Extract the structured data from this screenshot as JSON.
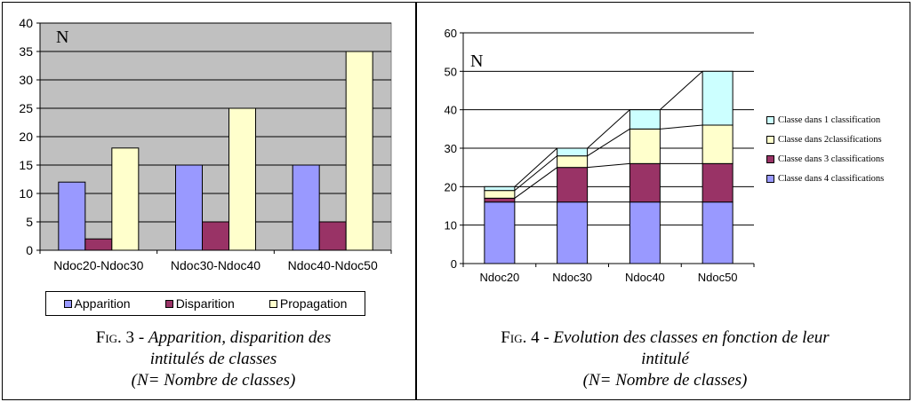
{
  "chart_data": [
    {
      "type": "bar",
      "y_axis_letter": "N",
      "categories": [
        "Ndoc20-Ndoc30",
        "Ndoc30-Ndoc40",
        "Ndoc40-Ndoc50"
      ],
      "series": [
        {
          "name": "Apparition",
          "values": [
            12,
            15,
            15
          ],
          "color": "#9999ff"
        },
        {
          "name": "Disparition",
          "values": [
            2,
            5,
            5
          ],
          "color": "#993366"
        },
        {
          "name": "Propagation",
          "values": [
            18,
            25,
            35
          ],
          "color": "#ffffcc"
        }
      ],
      "ylim": [
        0,
        40
      ],
      "yticks": [
        0,
        5,
        10,
        15,
        20,
        25,
        30,
        35,
        40
      ],
      "grid": true,
      "legend_placement": "bottom",
      "plot_background": "#c0c0c0",
      "caption": {
        "fig_label": "Fig. 3",
        "title_line1": "Apparition, disparition des",
        "title_line2": "intitulés de classes",
        "note": "(N= Nombre de classes)"
      }
    },
    {
      "type": "stacked-bar",
      "y_axis_letter": "N",
      "categories": [
        "Ndoc20",
        "Ndoc30",
        "Ndoc40",
        "Ndoc50"
      ],
      "series": [
        {
          "name": "Classe dans 4 classifications",
          "values": [
            16,
            16,
            16,
            16
          ],
          "color": "#9999ff"
        },
        {
          "name": "Classe dans 3 classifications",
          "values": [
            1,
            9,
            10,
            10
          ],
          "color": "#993366"
        },
        {
          "name": "Classe dans 2classifications",
          "values": [
            2,
            3,
            9,
            10
          ],
          "color": "#ffffcc"
        },
        {
          "name": "Classe dans 1 classification",
          "values": [
            1,
            2,
            5,
            14
          ],
          "color": "#ccffff"
        }
      ],
      "ylim": [
        0,
        60
      ],
      "yticks": [
        0,
        10,
        20,
        30,
        40,
        50,
        60
      ],
      "grid": true,
      "series_lines": true,
      "legend_placement": "right",
      "caption": {
        "fig_label": "Fig. 4",
        "title_line1": "Evolution des classes en fonction de leur",
        "title_line2": "intitulé",
        "note": "(N= Nombre de classes)"
      }
    }
  ]
}
